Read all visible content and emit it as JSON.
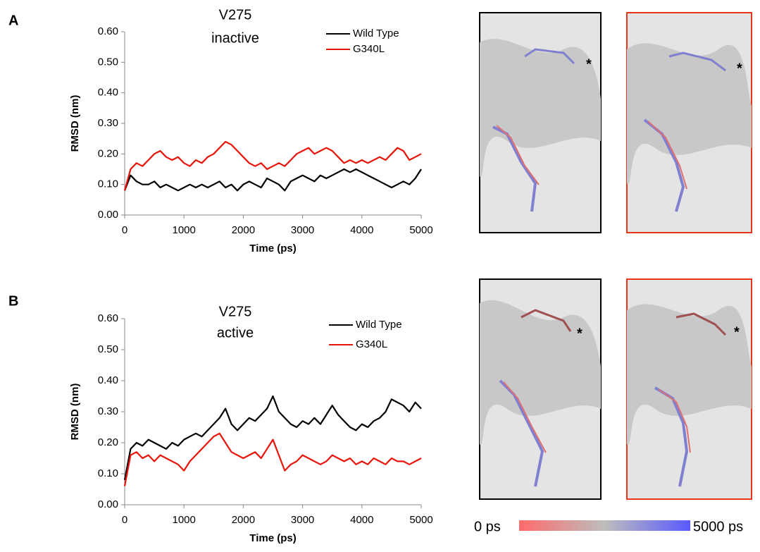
{
  "panel_labels": [
    "A",
    "B"
  ],
  "structure_marker": "*",
  "colorbar": {
    "start_label": "0 ps",
    "end_label": "5000 ps",
    "colors": [
      "#ff6b6b",
      "#bdbdbd",
      "#5a5aff"
    ]
  },
  "chart_data": [
    {
      "type": "line",
      "title": "V275",
      "subtitle": "inactive",
      "x_label": "Time (ps)",
      "y_label": "RMSD (nm)",
      "x": [
        0,
        100,
        200,
        300,
        400,
        500,
        600,
        700,
        800,
        900,
        1000,
        1100,
        1200,
        1300,
        1400,
        1500,
        1600,
        1700,
        1800,
        1900,
        2000,
        2100,
        2200,
        2300,
        2400,
        2500,
        2600,
        2700,
        2800,
        2900,
        3000,
        3100,
        3200,
        3300,
        3400,
        3500,
        3600,
        3700,
        3800,
        3900,
        4000,
        4100,
        4200,
        4300,
        4400,
        4500,
        4600,
        4700,
        4800,
        4900,
        5000
      ],
      "xlim": [
        0,
        5000
      ],
      "xticks": [
        0,
        1000,
        2000,
        3000,
        4000,
        5000
      ],
      "ylim": [
        0,
        0.6
      ],
      "yticks": [
        {
          "value": 0,
          "label": "0.00"
        },
        {
          "value": 0.1,
          "label": "0.10"
        },
        {
          "value": 0.2,
          "label": "0.20"
        },
        {
          "value": 0.3,
          "label": "0.30"
        },
        {
          "value": 0.4,
          "label": "0.40"
        },
        {
          "value": 0.5,
          "label": "0.50"
        },
        {
          "value": 0.6,
          "label": "0.60"
        }
      ],
      "legend": "upper right",
      "series": [
        {
          "name": "Wild Type",
          "color": "#000000",
          "values": [
            0.08,
            0.13,
            0.11,
            0.1,
            0.1,
            0.11,
            0.09,
            0.1,
            0.09,
            0.08,
            0.09,
            0.1,
            0.09,
            0.1,
            0.09,
            0.1,
            0.11,
            0.09,
            0.1,
            0.08,
            0.1,
            0.11,
            0.1,
            0.09,
            0.12,
            0.11,
            0.1,
            0.08,
            0.11,
            0.12,
            0.13,
            0.12,
            0.11,
            0.13,
            0.12,
            0.13,
            0.14,
            0.15,
            0.14,
            0.15,
            0.14,
            0.13,
            0.12,
            0.11,
            0.1,
            0.09,
            0.1,
            0.11,
            0.1,
            0.12,
            0.15
          ]
        },
        {
          "name": "G340L",
          "color": "#e8140a",
          "values": [
            0.08,
            0.15,
            0.17,
            0.16,
            0.18,
            0.2,
            0.21,
            0.19,
            0.18,
            0.19,
            0.17,
            0.16,
            0.18,
            0.17,
            0.19,
            0.2,
            0.22,
            0.24,
            0.23,
            0.21,
            0.19,
            0.17,
            0.16,
            0.17,
            0.15,
            0.16,
            0.17,
            0.16,
            0.18,
            0.2,
            0.21,
            0.22,
            0.2,
            0.21,
            0.22,
            0.21,
            0.19,
            0.17,
            0.18,
            0.17,
            0.18,
            0.17,
            0.18,
            0.19,
            0.18,
            0.2,
            0.22,
            0.21,
            0.18,
            0.19,
            0.2
          ]
        }
      ]
    },
    {
      "type": "line",
      "title": "V275",
      "subtitle": "active",
      "x_label": "Time (ps)",
      "y_label": "RMSD (nm)",
      "x": [
        0,
        100,
        200,
        300,
        400,
        500,
        600,
        700,
        800,
        900,
        1000,
        1100,
        1200,
        1300,
        1400,
        1500,
        1600,
        1700,
        1800,
        1900,
        2000,
        2100,
        2200,
        2300,
        2400,
        2500,
        2600,
        2700,
        2800,
        2900,
        3000,
        3100,
        3200,
        3300,
        3400,
        3500,
        3600,
        3700,
        3800,
        3900,
        4000,
        4100,
        4200,
        4300,
        4400,
        4500,
        4600,
        4700,
        4800,
        4900,
        5000
      ],
      "xlim": [
        0,
        5000
      ],
      "xticks": [
        0,
        1000,
        2000,
        3000,
        4000,
        5000
      ],
      "ylim": [
        0,
        0.6
      ],
      "yticks": [
        {
          "value": 0,
          "label": "0.00"
        },
        {
          "value": 0.1,
          "label": "0.10"
        },
        {
          "value": 0.2,
          "label": "0.20"
        },
        {
          "value": 0.3,
          "label": "0.30"
        },
        {
          "value": 0.4,
          "label": "0.40"
        },
        {
          "value": 0.5,
          "label": "0.50"
        },
        {
          "value": 0.6,
          "label": "0.60"
        }
      ],
      "legend": "upper right",
      "series": [
        {
          "name": "Wild Type",
          "color": "#000000",
          "values": [
            0.08,
            0.18,
            0.2,
            0.19,
            0.21,
            0.2,
            0.19,
            0.18,
            0.2,
            0.19,
            0.21,
            0.22,
            0.23,
            0.22,
            0.24,
            0.26,
            0.28,
            0.31,
            0.26,
            0.24,
            0.26,
            0.28,
            0.27,
            0.29,
            0.31,
            0.35,
            0.3,
            0.28,
            0.26,
            0.25,
            0.27,
            0.26,
            0.28,
            0.26,
            0.29,
            0.32,
            0.29,
            0.27,
            0.25,
            0.24,
            0.26,
            0.25,
            0.27,
            0.28,
            0.3,
            0.34,
            0.33,
            0.32,
            0.3,
            0.33,
            0.31
          ]
        },
        {
          "name": "G340L",
          "color": "#e8140a",
          "values": [
            0.06,
            0.16,
            0.17,
            0.15,
            0.16,
            0.14,
            0.16,
            0.15,
            0.14,
            0.13,
            0.11,
            0.14,
            0.16,
            0.18,
            0.2,
            0.22,
            0.23,
            0.2,
            0.17,
            0.16,
            0.15,
            0.16,
            0.17,
            0.15,
            0.18,
            0.21,
            0.16,
            0.11,
            0.13,
            0.14,
            0.16,
            0.15,
            0.14,
            0.13,
            0.14,
            0.16,
            0.15,
            0.14,
            0.15,
            0.13,
            0.14,
            0.13,
            0.15,
            0.14,
            0.13,
            0.15,
            0.14,
            0.14,
            0.13,
            0.14,
            0.15
          ]
        }
      ]
    }
  ]
}
